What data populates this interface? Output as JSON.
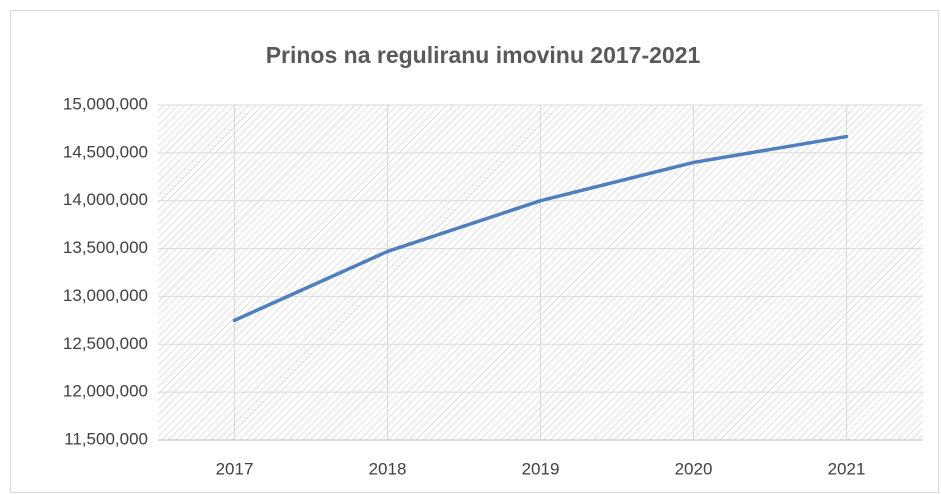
{
  "chart_data": {
    "type": "line",
    "title": "Prinos na reguliranu imovinu 2017-2021",
    "categories": [
      "2017",
      "2018",
      "2019",
      "2020",
      "2021"
    ],
    "series": [
      {
        "name": "Prinos",
        "color": "#4f7fbf",
        "values": [
          12750000,
          13470000,
          14000000,
          14400000,
          14670000
        ]
      }
    ],
    "ylim": [
      11500000,
      15000000
    ],
    "yticks": [
      {
        "value": 11500000,
        "label": "11,500,000"
      },
      {
        "value": 12000000,
        "label": "12,000,000"
      },
      {
        "value": 12500000,
        "label": "12,500,000"
      },
      {
        "value": 13000000,
        "label": "13,000,000"
      },
      {
        "value": 13500000,
        "label": "13,500,000"
      },
      {
        "value": 14000000,
        "label": "14,000,000"
      },
      {
        "value": 14500000,
        "label": "14,500,000"
      },
      {
        "value": 15000000,
        "label": "15,000,000"
      }
    ],
    "grid": true
  }
}
